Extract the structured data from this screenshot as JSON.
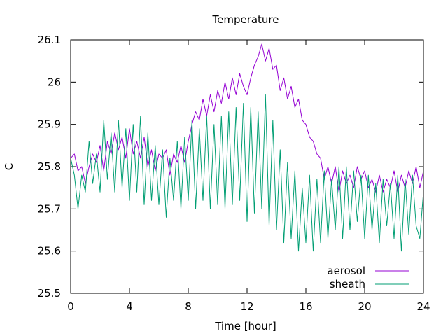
{
  "chart_data": {
    "type": "line",
    "title": "Temperature",
    "xlabel": "Time [hour]",
    "ylabel": "C",
    "xlim": [
      0,
      24
    ],
    "ylim": [
      25.5,
      26.1
    ],
    "xticks": [
      0,
      4,
      8,
      12,
      16,
      20,
      24
    ],
    "yticks": [
      25.5,
      25.6,
      25.7,
      25.8,
      25.9,
      26,
      26.1
    ],
    "xtick_labels": [
      "0",
      "4",
      "8",
      "12",
      "16",
      "20",
      "24"
    ],
    "ytick_labels": [
      "25.5",
      "25.6",
      "25.7",
      "25.8",
      "25.9",
      "26",
      "26.1"
    ],
    "grid": false,
    "legend_position": "bottom-right",
    "series": [
      {
        "name": "aerosol",
        "color": "#9400d3",
        "x": [
          0,
          0.25,
          0.5,
          0.75,
          1,
          1.25,
          1.5,
          1.75,
          2,
          2.25,
          2.5,
          2.75,
          3,
          3.25,
          3.5,
          3.75,
          4,
          4.25,
          4.5,
          4.75,
          5,
          5.25,
          5.5,
          5.75,
          6,
          6.25,
          6.5,
          6.75,
          7,
          7.25,
          7.5,
          7.75,
          8,
          8.25,
          8.5,
          8.75,
          9,
          9.25,
          9.5,
          9.75,
          10,
          10.25,
          10.5,
          10.75,
          11,
          11.25,
          11.5,
          11.75,
          12,
          12.25,
          12.5,
          12.75,
          13,
          13.25,
          13.5,
          13.75,
          14,
          14.25,
          14.5,
          14.75,
          15,
          15.25,
          15.5,
          15.75,
          16,
          16.25,
          16.5,
          16.75,
          17,
          17.25,
          17.5,
          17.75,
          18,
          18.25,
          18.5,
          18.75,
          19,
          19.25,
          19.5,
          19.75,
          20,
          20.25,
          20.5,
          20.75,
          21,
          21.25,
          21.5,
          21.75,
          22,
          22.25,
          22.5,
          22.75,
          23,
          23.25,
          23.5,
          23.75,
          24
        ],
        "y": [
          25.82,
          25.83,
          25.79,
          25.8,
          25.76,
          25.8,
          25.83,
          25.81,
          25.85,
          25.79,
          25.86,
          25.83,
          25.88,
          25.84,
          25.87,
          25.82,
          25.89,
          25.83,
          25.86,
          25.82,
          25.87,
          25.8,
          25.84,
          25.79,
          25.83,
          25.82,
          25.84,
          25.78,
          25.83,
          25.81,
          25.85,
          25.81,
          25.86,
          25.9,
          25.93,
          25.91,
          25.96,
          25.92,
          25.97,
          25.93,
          25.98,
          25.95,
          26.0,
          25.96,
          26.01,
          25.97,
          26.02,
          25.99,
          25.97,
          26.01,
          26.04,
          26.06,
          26.09,
          26.05,
          26.08,
          26.03,
          26.04,
          25.98,
          26.01,
          25.96,
          25.99,
          25.94,
          25.96,
          25.91,
          25.9,
          25.87,
          25.86,
          25.83,
          25.82,
          25.77,
          25.8,
          25.76,
          25.8,
          25.74,
          25.79,
          25.76,
          25.78,
          25.75,
          25.8,
          25.77,
          25.79,
          25.75,
          25.77,
          25.74,
          25.78,
          25.74,
          25.77,
          25.75,
          25.79,
          25.74,
          25.78,
          25.75,
          25.79,
          25.76,
          25.8,
          25.75,
          25.79
        ]
      },
      {
        "name": "sheath",
        "color": "#009e73",
        "x": [
          0,
          0.25,
          0.5,
          0.75,
          1,
          1.25,
          1.5,
          1.75,
          2,
          2.25,
          2.5,
          2.75,
          3,
          3.25,
          3.5,
          3.75,
          4,
          4.25,
          4.5,
          4.75,
          5,
          5.25,
          5.5,
          5.75,
          6,
          6.25,
          6.5,
          6.75,
          7,
          7.25,
          7.5,
          7.75,
          8,
          8.25,
          8.5,
          8.75,
          9,
          9.25,
          9.5,
          9.75,
          10,
          10.25,
          10.5,
          10.75,
          11,
          11.25,
          11.5,
          11.75,
          12,
          12.25,
          12.5,
          12.75,
          13,
          13.25,
          13.5,
          13.75,
          14,
          14.25,
          14.5,
          14.75,
          15,
          15.25,
          15.5,
          15.75,
          16,
          16.25,
          16.5,
          16.75,
          17,
          17.25,
          17.5,
          17.75,
          18,
          18.25,
          18.5,
          18.75,
          19,
          19.25,
          19.5,
          19.75,
          20,
          20.25,
          20.5,
          20.75,
          21,
          21.25,
          21.5,
          21.75,
          22,
          22.25,
          22.5,
          22.75,
          23,
          23.25,
          23.5,
          23.75,
          24
        ],
        "y": [
          25.82,
          25.78,
          25.7,
          25.78,
          25.74,
          25.86,
          25.76,
          25.83,
          25.74,
          25.91,
          25.77,
          25.88,
          25.74,
          25.91,
          25.75,
          25.89,
          25.72,
          25.9,
          25.74,
          25.92,
          25.71,
          25.88,
          25.72,
          25.85,
          25.71,
          25.84,
          25.68,
          25.82,
          25.72,
          25.86,
          25.7,
          25.87,
          25.72,
          25.91,
          25.7,
          25.89,
          25.72,
          25.92,
          25.7,
          25.9,
          25.71,
          25.92,
          25.7,
          25.93,
          25.71,
          25.94,
          25.72,
          25.95,
          25.67,
          25.94,
          25.69,
          25.93,
          25.7,
          25.97,
          25.66,
          25.91,
          25.65,
          25.84,
          25.62,
          25.81,
          25.63,
          25.79,
          25.6,
          25.75,
          25.62,
          25.78,
          25.6,
          25.77,
          25.62,
          25.79,
          25.63,
          25.77,
          25.65,
          25.8,
          25.63,
          25.8,
          25.65,
          25.79,
          25.67,
          25.78,
          25.63,
          25.78,
          25.65,
          25.76,
          25.62,
          25.77,
          25.66,
          25.76,
          25.63,
          25.78,
          25.6,
          25.77,
          25.64,
          25.78,
          25.66,
          25.63,
          25.74
        ]
      }
    ]
  }
}
